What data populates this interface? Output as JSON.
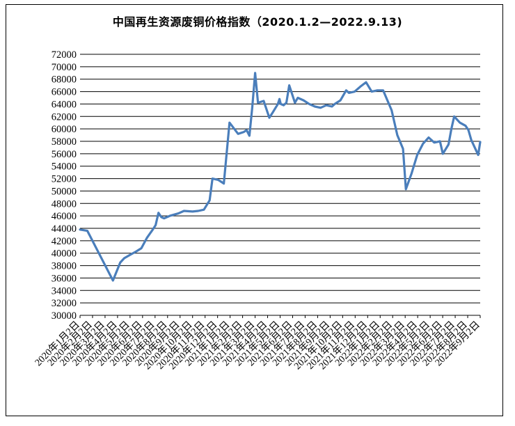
{
  "chart_data": {
    "type": "line",
    "title": "中国再生资源废铜价格指数（2020.1.2—2022.9.13)",
    "xlabel": "",
    "ylabel": "",
    "ylim": [
      30000,
      72000
    ],
    "ytick_step": 2000,
    "grid": "horizontal",
    "legend": "none",
    "line_color": "#4a7ebb",
    "x_tick_labels": [
      "2020年1月2日",
      "2020年2月2日",
      "2020年3月2日",
      "2020年4月2日",
      "2020年5月2日",
      "2020年6月2日",
      "2020年7月2日",
      "2020年8月2日",
      "2020年9月2日",
      "2020年10月2日",
      "2020年11月2日",
      "2020年12月2日",
      "2021年1月2日",
      "2021年2月2日",
      "2021年3月2日",
      "2021年4月2日",
      "2021年5月2日",
      "2021年6月2日",
      "2021年7月2日",
      "2021年8月2日",
      "2021年9月2日",
      "2021年10月2日",
      "2021年11月2日",
      "2021年12月2日",
      "2022年1月2日",
      "2022年2月2日",
      "2022年3月2日",
      "2022年4月2日",
      "2022年5月2日",
      "2022年6月2日",
      "2022年7月2日",
      "2022年8月2日",
      "2022年9月2日"
    ],
    "x": [
      "2020-01-02",
      "2020-01-20",
      "2020-03-23",
      "2020-04-10",
      "2020-04-20",
      "2020-05-06",
      "2020-05-20",
      "2020-06-01",
      "2020-06-15",
      "2020-06-29",
      "2020-07-06",
      "2020-07-13",
      "2020-07-20",
      "2020-07-27",
      "2020-08-10",
      "2020-08-31",
      "2020-09-14",
      "2020-10-05",
      "2020-10-19",
      "2020-11-02",
      "2020-11-16",
      "2020-11-23",
      "2020-12-07",
      "2020-12-14",
      "2020-12-21",
      "2021-01-04",
      "2021-01-25",
      "2021-02-08",
      "2021-02-15",
      "2021-02-22",
      "2021-03-01",
      "2021-03-08",
      "2021-03-15",
      "2021-03-29",
      "2021-04-12",
      "2021-04-19",
      "2021-05-03",
      "2021-05-07",
      "2021-05-10",
      "2021-05-17",
      "2021-05-24",
      "2021-05-31",
      "2021-06-14",
      "2021-06-21",
      "2021-07-05",
      "2021-07-19",
      "2021-08-02",
      "2021-08-16",
      "2021-08-30",
      "2021-09-13",
      "2021-09-20",
      "2021-10-04",
      "2021-10-18",
      "2021-10-25",
      "2021-11-08",
      "2021-11-22",
      "2021-12-06",
      "2021-12-20",
      "2022-01-03",
      "2022-01-17",
      "2022-02-07",
      "2022-02-21",
      "2022-03-07",
      "2022-03-14",
      "2022-03-28",
      "2022-04-11",
      "2022-04-25",
      "2022-05-09",
      "2022-05-23",
      "2022-06-06",
      "2022-06-13",
      "2022-06-27",
      "2022-07-04",
      "2022-07-11",
      "2022-07-25",
      "2022-08-08",
      "2022-08-15",
      "2022-08-22",
      "2022-09-01",
      "2022-09-08",
      "2022-09-13"
    ],
    "series": [
      {
        "values": [
          43800,
          43600,
          35600,
          38500,
          39200,
          39800,
          40300,
          40800,
          42500,
          43800,
          44500,
          46500,
          45800,
          45600,
          46000,
          46400,
          46800,
          46700,
          46800,
          47000,
          48500,
          52000,
          51800,
          51500,
          51200,
          61000,
          59200,
          59500,
          59800,
          58900,
          63500,
          69000,
          64200,
          64500,
          61800,
          62500,
          64000,
          64800,
          64000,
          63800,
          64200,
          67000,
          64200,
          65000,
          64600,
          64000,
          63600,
          63400,
          63800,
          63600,
          64000,
          64600,
          66200,
          65800,
          66000,
          66800,
          67500,
          66000,
          66200,
          66200,
          63000,
          59000,
          56800,
          50300,
          52800,
          55800,
          57600,
          58600,
          57800,
          58000,
          56000,
          57500,
          60000,
          62000,
          61000,
          60500,
          59800,
          58200,
          56800,
          55800,
          57900
        ]
      }
    ]
  }
}
